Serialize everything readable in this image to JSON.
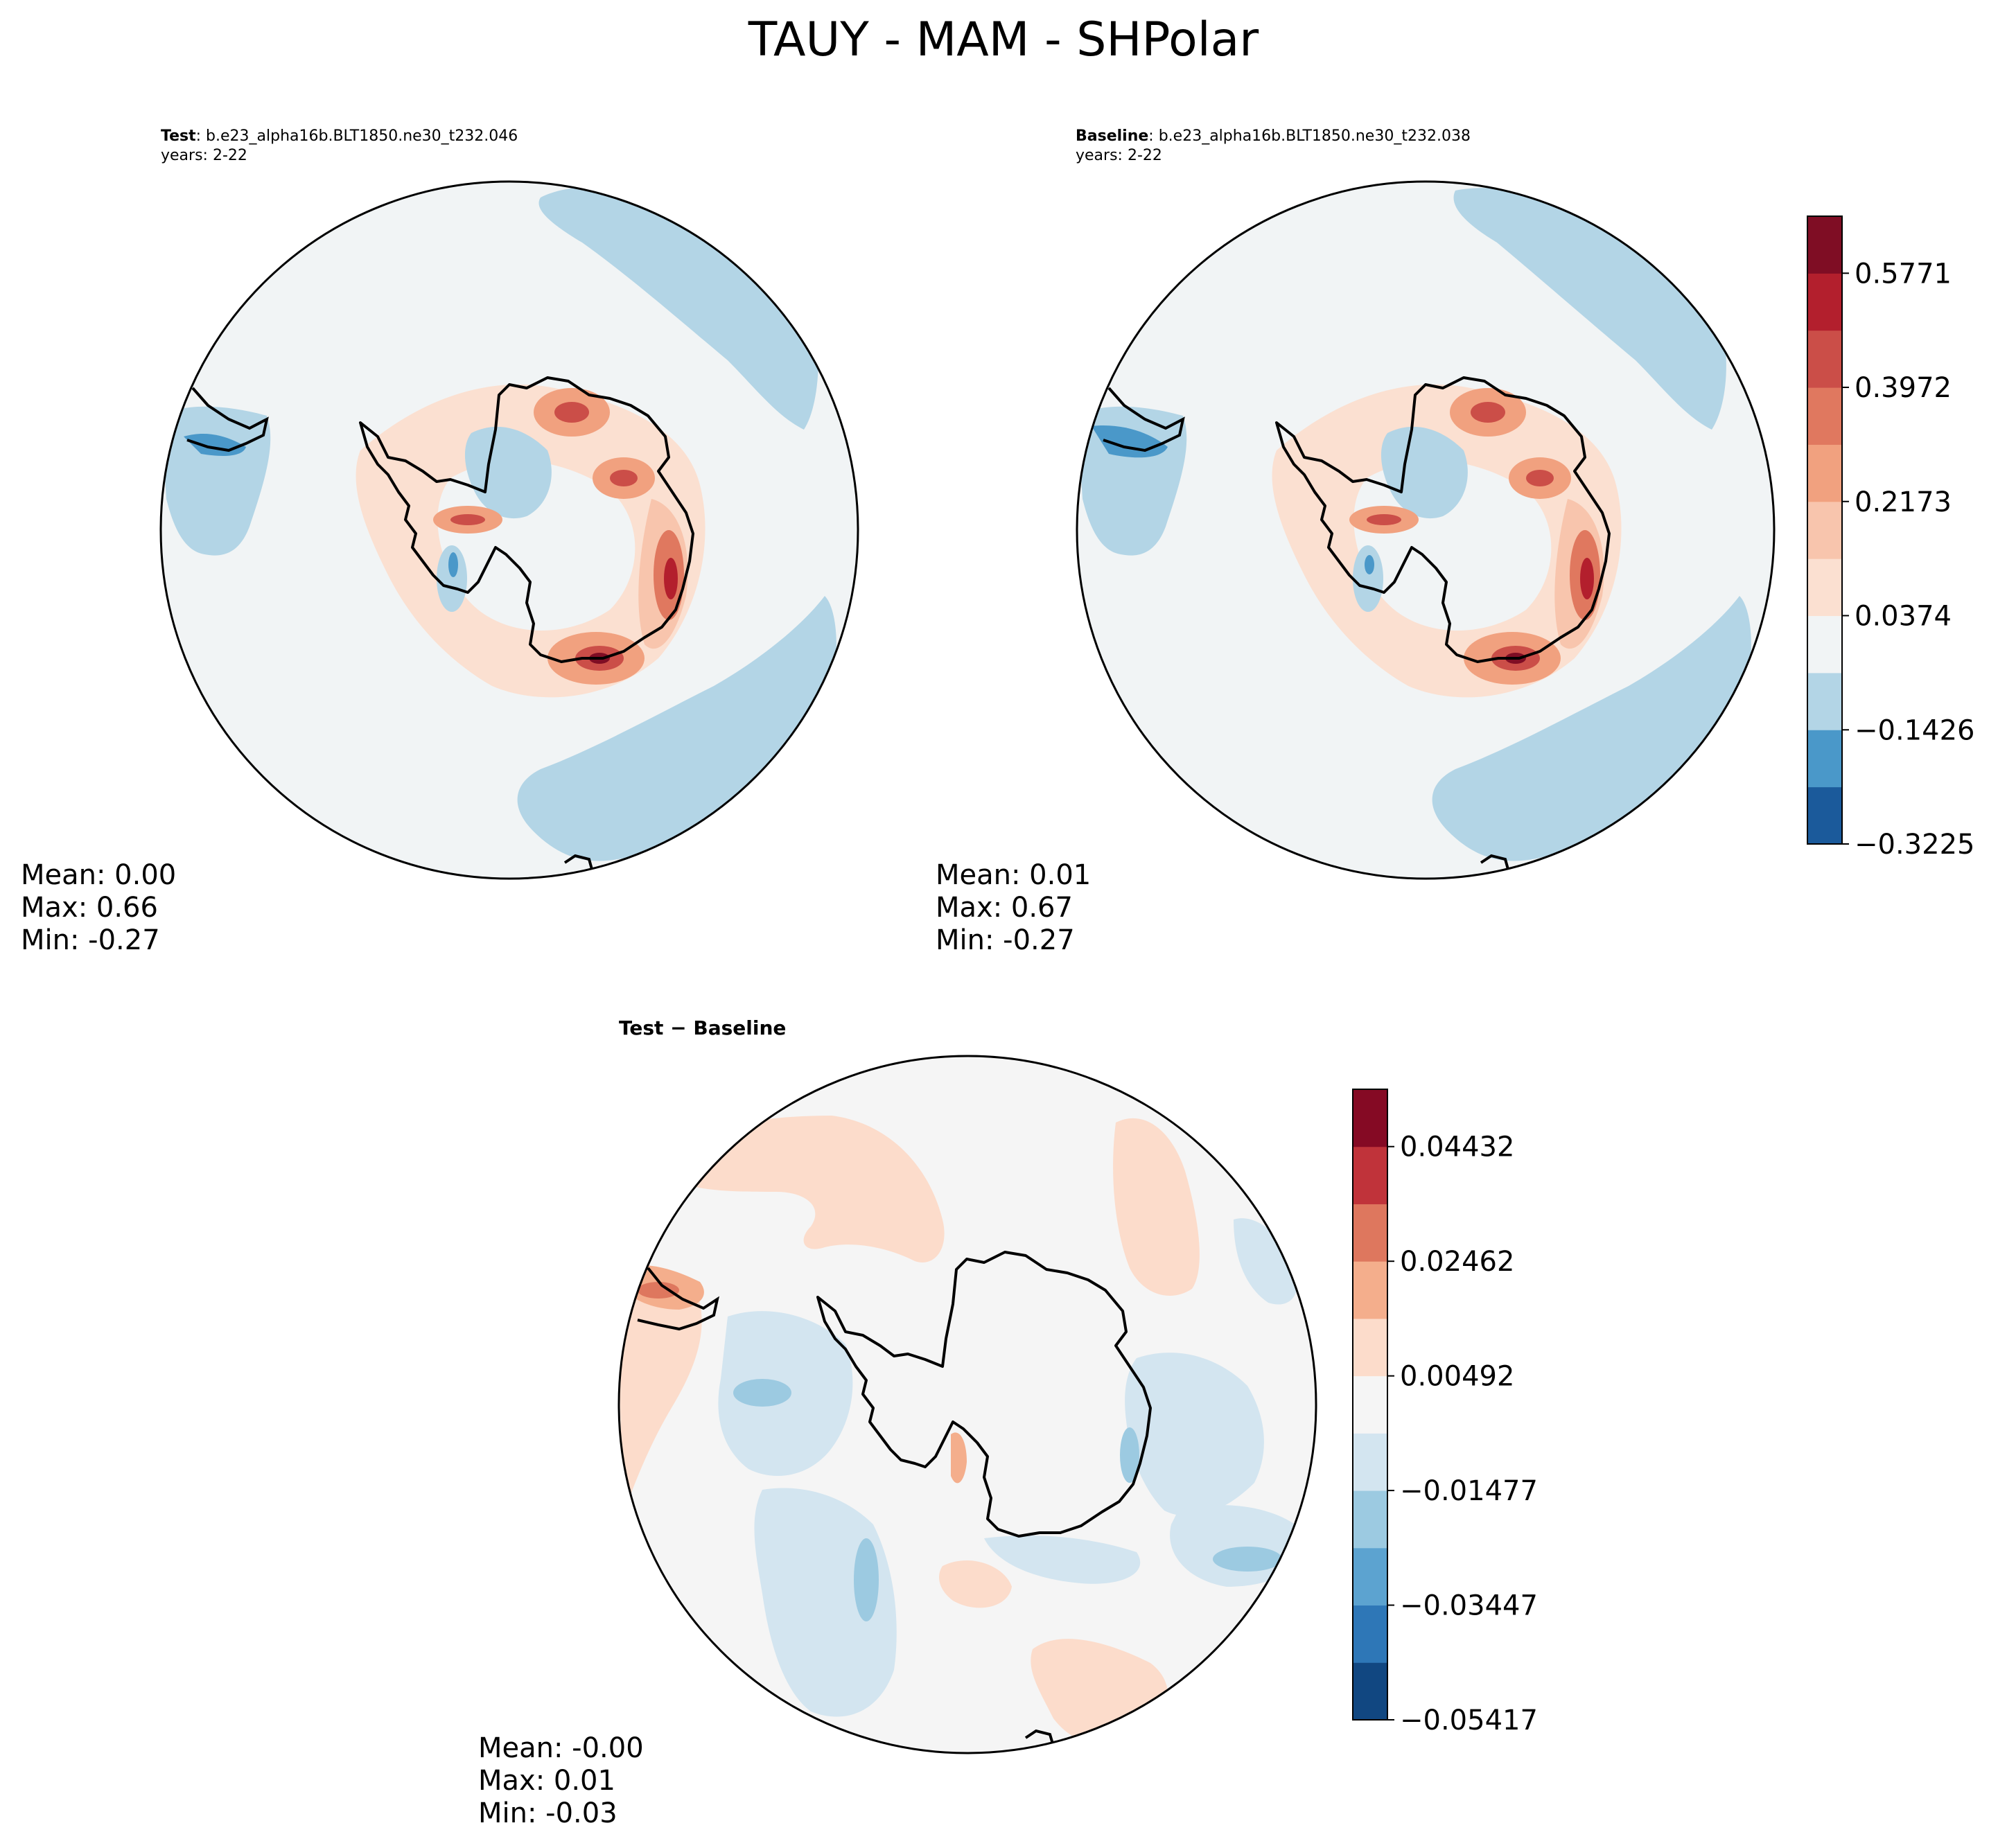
{
  "figure": {
    "title": "TAUY - MAM - SHPolar"
  },
  "panels": [
    {
      "id": "test",
      "label": "Test",
      "case": "b.e23_alpha16b.BLT1850.ne30_t232.046",
      "years": "years: 2-22",
      "stats": {
        "mean": "Mean:  0.00",
        "max": "Max:  0.66",
        "min": "Min: -0.27"
      }
    },
    {
      "id": "baseline",
      "label": "Baseline",
      "case": "b.e23_alpha16b.BLT1850.ne30_t232.038",
      "years": "years: 2-22",
      "stats": {
        "mean": "Mean:  0.01",
        "max": "Max:  0.67",
        "min": "Min: -0.27"
      }
    },
    {
      "id": "diff",
      "label": "Test − Baseline",
      "stats": {
        "mean": "Mean: -0.00",
        "max": "Max:  0.01",
        "min": "Min: -0.03"
      }
    }
  ],
  "colorbars": {
    "main": {
      "ticks": [
        "−0.3225",
        "−0.1426",
        "0.0374",
        "0.2173",
        "0.3972",
        "0.5771"
      ],
      "tick_values": [
        -0.3225,
        -0.1426,
        0.0374,
        0.2173,
        0.3972,
        0.5771
      ],
      "range": [
        -0.3225,
        0.667
      ],
      "colors": [
        "#1b5a9b",
        "#4a98c9",
        "#b3d5e6",
        "#f1f4f5",
        "#fbe0d1",
        "#f8c5ad",
        "#f1a17f",
        "#e0785f",
        "#cb4e48",
        "#b31f2d",
        "#7f0d24"
      ]
    },
    "diff": {
      "ticks": [
        "−0.05417",
        "−0.03447",
        "−0.01477",
        "0.00492",
        "0.02462",
        "0.04432"
      ],
      "tick_values": [
        -0.05417,
        -0.03447,
        -0.01477,
        0.00492,
        0.02462,
        0.04432
      ],
      "range": [
        -0.05417,
        0.05417
      ],
      "colors": [
        "#114781",
        "#2e77b7",
        "#5ca3d0",
        "#9ccae1",
        "#d3e5f0",
        "#f5f5f5",
        "#fcdccb",
        "#f4ae8c",
        "#de775e",
        "#c0333a",
        "#850a24"
      ]
    }
  },
  "map_colors": {
    "main_background": "#f1f4f5",
    "main_negative": "#b3d5e6",
    "main_negative_strong": "#4a98c9",
    "diff_background": "#f5f5f5",
    "diff_negative": "#d3e5f0",
    "diff_positive": "#fcdccb"
  }
}
